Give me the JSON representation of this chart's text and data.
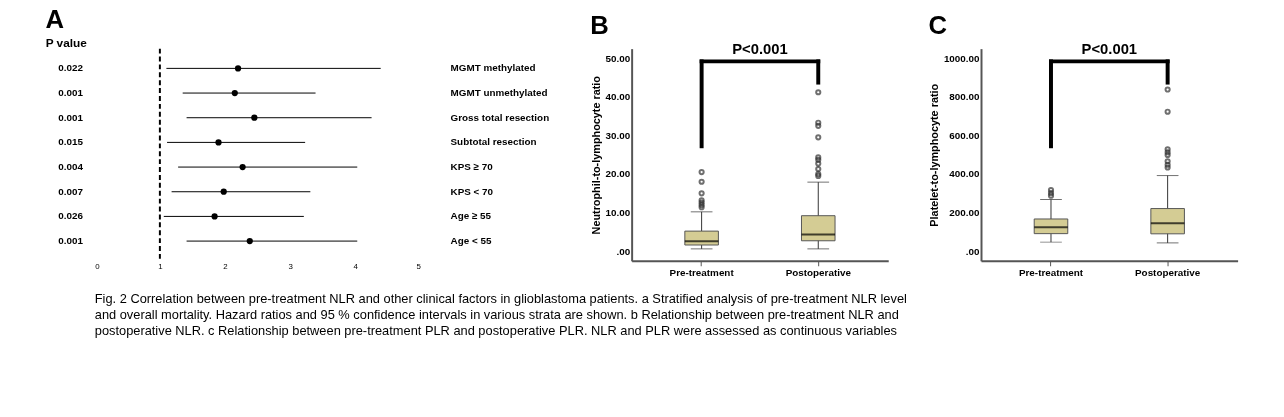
{
  "chart_data": [
    {
      "type": "scatter",
      "title": "A",
      "orientation": "horizontal",
      "categories": [
        "MGMT methylated",
        "MGMT unmethylated",
        "Gross total resection",
        "Subtotal resection",
        "KPS ≥ 70",
        "KPS < 70",
        "Age ≥ 55",
        "Age < 55"
      ],
      "values": [
        2.2,
        2.15,
        2.45,
        1.9,
        2.27,
        1.98,
        1.84,
        2.38
      ],
      "errors": [
        [
          1.1,
          4.39
        ],
        [
          1.35,
          3.39
        ],
        [
          1.41,
          4.25
        ],
        [
          1.11,
          3.23
        ],
        [
          1.28,
          4.03
        ],
        [
          1.18,
          3.31
        ],
        [
          1.06,
          3.21
        ],
        [
          1.41,
          4.03
        ]
      ],
      "color": "#000000",
      "marker": "circle",
      "xlim": [
        0,
        5
      ],
      "xticks": [
        0,
        1,
        2,
        3,
        4,
        5
      ],
      "grid": false,
      "ref_lines": [
        {
          "axis": "x",
          "value": 1,
          "line_style": "dashed",
          "color": "#000000"
        }
      ],
      "annotations": [
        "P value",
        "0.022",
        "0.001",
        "0.001",
        "0.015",
        "0.004",
        "0.007",
        "0.026",
        "0.001",
        "Fig. 2 Correlation between pre-treatment NLR and other clinical factors in glioblastoma patients. a Stratified analysis of pre-treatment NLR level",
        "and overall mortality. Hazard ratios and 95 % confidence intervals in various strata are shown. b Relationship between pre-treatment NLR and",
        "postoperative NLR. c Relationship between pre-treatment PLR and postoperative PLR. NLR and PLR were assessed as continuous variables"
      ]
    },
    {
      "type": "box",
      "title": "B",
      "ylabel": "Neutrophil-to-lymphocyte ratio",
      "color": "#d4cc94",
      "categories": [
        "Pre-treatment",
        "Postoperative"
      ],
      "boxes": [
        {
          "low": 0.6,
          "q1": 1.6,
          "median": 2.6,
          "q3": 5.2,
          "high": 10.2,
          "outliers": [
            11.4,
            12.0,
            12.6,
            13.2,
            15.0,
            18.0,
            20.5
          ]
        },
        {
          "low": 0.6,
          "q1": 2.7,
          "median": 4.3,
          "q3": 9.2,
          "high": 17.9,
          "outliers": [
            19.5,
            20.0,
            21.3,
            22.7,
            23.7,
            24.3,
            29.5,
            32.5,
            33.3,
            41.2
          ]
        }
      ],
      "ylim": [
        -2.5,
        52.5
      ],
      "yticks": [
        {
          "value": 0,
          "label": ".00"
        },
        {
          "value": 10,
          "label": "10.00"
        },
        {
          "value": 20,
          "label": "20.00"
        },
        {
          "value": 30,
          "label": "30.00"
        },
        {
          "value": 40,
          "label": "40.00"
        },
        {
          "value": 50,
          "label": "50.00"
        }
      ],
      "grid": false,
      "annotations": [
        "P<0.001"
      ]
    },
    {
      "type": "box",
      "title": "C",
      "ylabel": "Platelet-to-lymphocyte ratio",
      "color": "#d4cc94",
      "categories": [
        "Pre-treatment",
        "Postoperative"
      ],
      "boxes": [
        {
          "low": 47,
          "q1": 91,
          "median": 124,
          "q3": 167,
          "high": 268,
          "outliers": [
            288,
            301,
            317
          ]
        },
        {
          "low": 43,
          "q1": 90,
          "median": 145,
          "q3": 221,
          "high": 392,
          "outliers": [
            434,
            448,
            466,
            499,
            513,
            528,
            723,
            838
          ]
        }
      ],
      "ylim": [
        -50,
        1050
      ],
      "yticks": [
        {
          "value": 0,
          "label": ".00"
        },
        {
          "value": 200,
          "label": "200.00"
        },
        {
          "value": 400,
          "label": "400.00"
        },
        {
          "value": 600,
          "label": "600.00"
        },
        {
          "value": 800,
          "label": "800.00"
        },
        {
          "value": 1000,
          "label": "1000.00"
        }
      ],
      "grid": false,
      "annotations": [
        "P<0.001"
      ]
    }
  ]
}
